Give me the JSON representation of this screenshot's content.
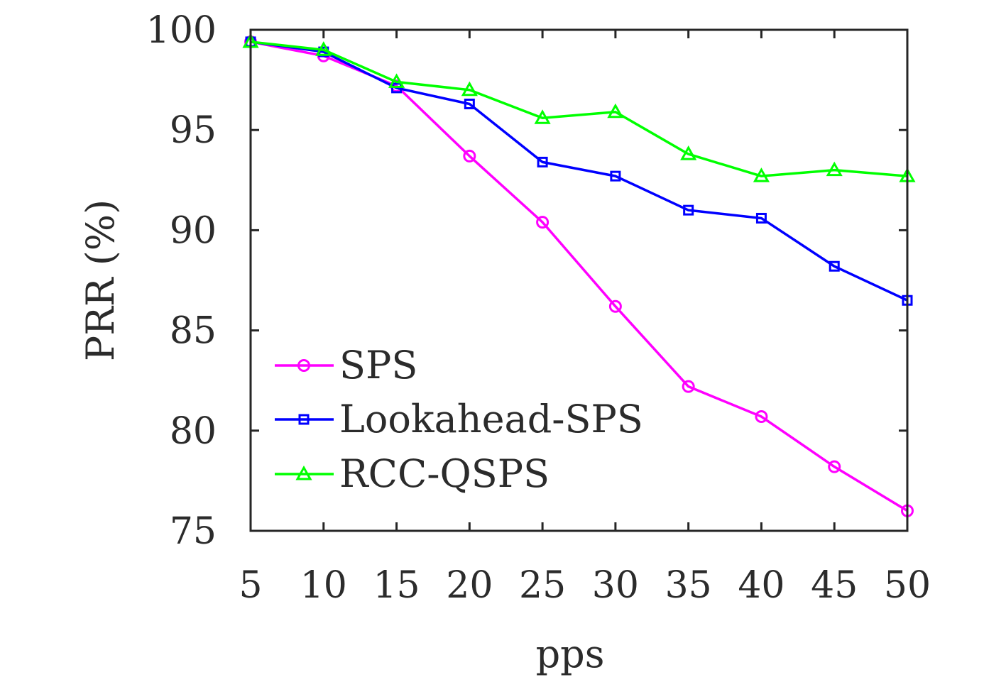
{
  "chart_data": {
    "type": "line",
    "xlabel": "pps",
    "ylabel": "PRR (%)",
    "xlim": [
      5,
      50
    ],
    "ylim": [
      75,
      100
    ],
    "x": [
      5,
      10,
      15,
      20,
      25,
      30,
      35,
      40,
      45,
      50
    ],
    "xticks": [
      "5",
      "10",
      "15",
      "20",
      "25",
      "30",
      "35",
      "40",
      "45",
      "50"
    ],
    "yticks": [
      "75",
      "80",
      "85",
      "90",
      "95",
      "100"
    ],
    "grid": false,
    "legend_position": "lower-left",
    "series": [
      {
        "name": "SPS",
        "color": "#ff00ff",
        "marker": "circle",
        "values": [
          99.4,
          98.7,
          97.2,
          93.7,
          90.4,
          86.2,
          82.2,
          80.7,
          78.2,
          76.0
        ]
      },
      {
        "name": "Lookahead-SPS",
        "color": "#0000ff",
        "marker": "square",
        "values": [
          99.4,
          98.9,
          97.1,
          96.3,
          93.4,
          92.7,
          91.0,
          90.6,
          88.2,
          86.5
        ]
      },
      {
        "name": "RCC-QSPS",
        "color": "#00ff00",
        "marker": "triangle",
        "values": [
          99.4,
          99.0,
          97.4,
          97.0,
          95.6,
          95.9,
          93.8,
          92.7,
          93.0,
          92.7
        ]
      }
    ]
  }
}
